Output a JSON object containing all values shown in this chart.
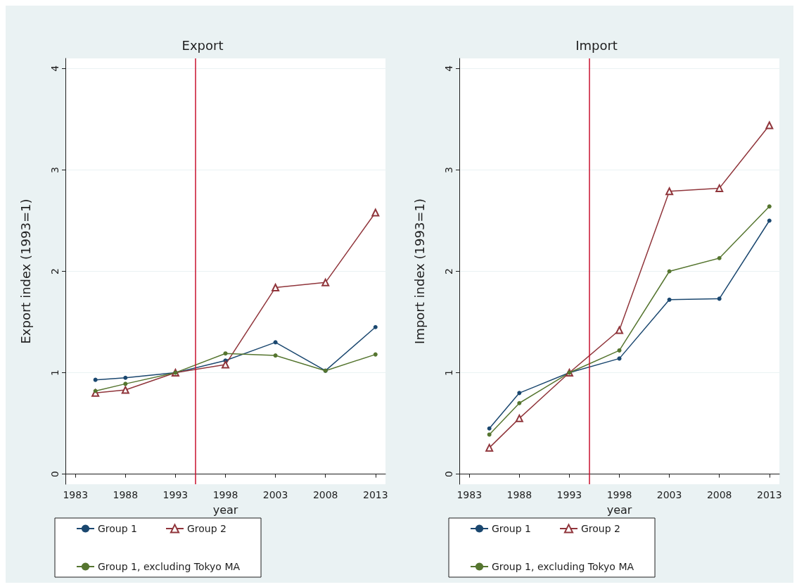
{
  "chart_data": [
    {
      "type": "line",
      "title": "Export",
      "xlabel": "year",
      "ylabel": "Export index (1993=1)",
      "x": [
        1985,
        1988,
        1993,
        1998,
        2003,
        2008,
        2013
      ],
      "xlim": [
        1982,
        2014
      ],
      "xticks": [
        1983,
        1988,
        1993,
        1998,
        2003,
        2008,
        2013
      ],
      "ylim": [
        -0.1,
        4.1
      ],
      "yticks": [
        0,
        1,
        2,
        3,
        4
      ],
      "grid": "y",
      "legend": "bottom",
      "ref_lines": [
        {
          "axis": "x",
          "value": 1995,
          "color": "#c8102e"
        }
      ],
      "series": [
        {
          "name": "Group 1",
          "color": "#1a476f",
          "marker": "circle",
          "values": [
            0.93,
            0.95,
            1.0,
            1.12,
            1.3,
            1.02,
            1.45
          ]
        },
        {
          "name": "Group 2",
          "color": "#90353b",
          "marker": "triangle",
          "values": [
            0.8,
            0.83,
            1.0,
            1.08,
            1.84,
            1.89,
            2.58
          ]
        },
        {
          "name": "Group 1, excluding Tokyo MA",
          "color": "#55752f",
          "marker": "circle",
          "values": [
            0.82,
            0.89,
            1.0,
            1.19,
            1.17,
            1.02,
            1.18
          ]
        }
      ]
    },
    {
      "type": "line",
      "title": "Import",
      "xlabel": "year",
      "ylabel": "Import index (1993=1)",
      "x": [
        1985,
        1988,
        1993,
        1998,
        2003,
        2008,
        2013
      ],
      "xlim": [
        1982,
        2014
      ],
      "xticks": [
        1983,
        1988,
        1993,
        1998,
        2003,
        2008,
        2013
      ],
      "ylim": [
        -0.1,
        4.1
      ],
      "yticks": [
        0,
        1,
        2,
        3,
        4
      ],
      "grid": "y",
      "legend": "bottom",
      "ref_lines": [
        {
          "axis": "x",
          "value": 1995,
          "color": "#c8102e"
        }
      ],
      "series": [
        {
          "name": "Group 1",
          "color": "#1a476f",
          "marker": "circle",
          "values": [
            0.45,
            0.8,
            1.0,
            1.14,
            1.72,
            1.73,
            2.5
          ]
        },
        {
          "name": "Group 2",
          "color": "#90353b",
          "marker": "triangle",
          "values": [
            0.26,
            0.55,
            1.0,
            1.42,
            2.79,
            2.82,
            3.44
          ]
        },
        {
          "name": "Group 1, excluding Tokyo MA",
          "color": "#55752f",
          "marker": "circle",
          "values": [
            0.39,
            0.7,
            1.0,
            1.22,
            2.0,
            2.13,
            2.64
          ]
        }
      ]
    }
  ]
}
